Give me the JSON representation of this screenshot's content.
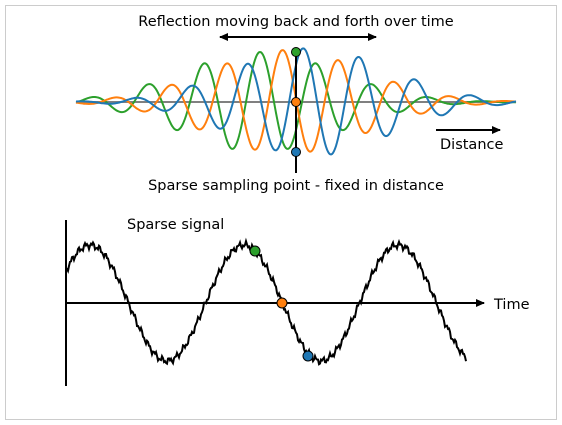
{
  "top_panel": {
    "title": "Reflection moving back and forth over time",
    "distance_label": "Distance",
    "sampling_label": "Sparse sampling point - fixed in distance"
  },
  "bottom_panel": {
    "title": "Sparse signal",
    "time_label": "Time"
  },
  "colors": {
    "green": "#2ca02c",
    "orange": "#ff7f0e",
    "blue": "#1f77b4",
    "axis": "#000000",
    "baseline": "#808080",
    "frame": "#cccccc"
  },
  "legend_markers": {
    "series": [
      "green",
      "orange",
      "blue"
    ]
  }
}
